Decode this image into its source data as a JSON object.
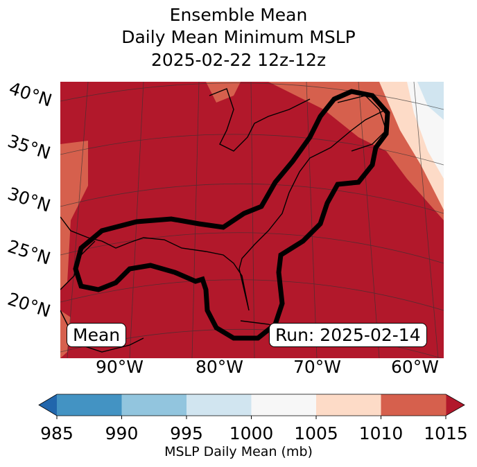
{
  "title": {
    "line1": "Ensemble Mean",
    "line2": "Daily Mean Minimum MSLP",
    "line3": "2025-02-22 12z-12z"
  },
  "map": {
    "lat_labels": [
      "40°N",
      "35°N",
      "30°N",
      "25°N",
      "20°N"
    ],
    "lon_labels": [
      "90°W",
      "80°W",
      "70°W",
      "60°W"
    ],
    "mean_label": "Mean",
    "run_label": "Run: 2025-02-14",
    "contour_color": "#000000"
  },
  "chart_data": {
    "type": "heatmap",
    "colorbar": {
      "label": "MSLP Daily Mean (mb)",
      "ticks": [
        "985",
        "990",
        "995",
        "1000",
        "1005",
        "1010",
        "1015"
      ],
      "levels": [
        985,
        990,
        995,
        1000,
        1005,
        1010,
        1015
      ],
      "colors": [
        "#4393c3",
        "#92c5de",
        "#d1e5f0",
        "#f7f7f7",
        "#fddbc7",
        "#d6604d"
      ],
      "under_color": "#2166ac",
      "over_color": "#b2182b",
      "extend": "both"
    }
  }
}
